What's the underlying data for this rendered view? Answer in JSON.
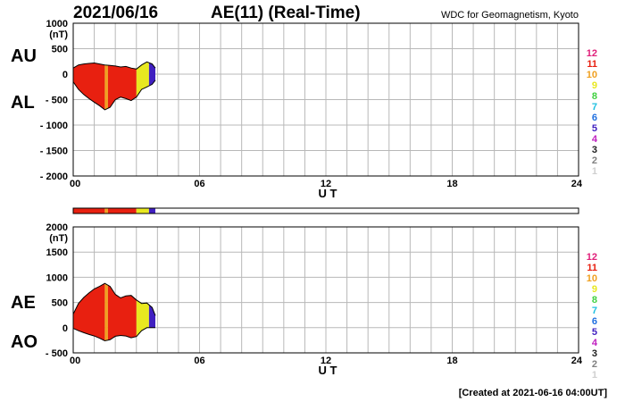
{
  "header": {
    "date": "2021/06/16",
    "title": "AE(11) (Real-Time)",
    "credit": "WDC for Geomagnetism, Kyoto"
  },
  "footer": {
    "created": "[Created at 2021-06-16 04:00UT]"
  },
  "colors": {
    "stations": {
      "12": "#e0207a",
      "11": "#e82010",
      "10": "#f0a020",
      "9": "#e8e820",
      "8": "#40d040",
      "7": "#20c0e0",
      "6": "#2070e0",
      "5": "#4020c0",
      "4": "#c020c0",
      "3": "#202020",
      "2": "#808080",
      "1": "#d0d0d0"
    }
  },
  "legend": [
    "12",
    "11",
    "10",
    "9",
    "8",
    "7",
    "6",
    "5",
    "4",
    "3",
    "2",
    "1"
  ],
  "chart_data": [
    {
      "type": "area",
      "panel": "top",
      "side_labels": [
        "AU",
        "AL"
      ],
      "ylabel_unit": "(nT)",
      "ylim": [
        -2000,
        1000
      ],
      "yticks": [
        "1000",
        "500",
        "0",
        "- 500",
        "- 1000",
        "- 1500",
        "- 2000"
      ],
      "xlim": [
        0,
        24
      ],
      "xticks": [
        "00",
        "06",
        "12",
        "18",
        "24"
      ],
      "xlabel": "U T",
      "grid": true,
      "x": [
        0,
        0.25,
        0.5,
        0.75,
        1.0,
        1.25,
        1.5,
        1.75,
        2.0,
        2.25,
        2.5,
        2.75,
        3.0,
        3.25,
        3.5,
        3.75,
        3.9
      ],
      "series": [
        {
          "name": "AU",
          "values": [
            120,
            180,
            200,
            210,
            220,
            200,
            180,
            170,
            160,
            140,
            150,
            120,
            100,
            180,
            240,
            200,
            120
          ]
        },
        {
          "name": "AL",
          "values": [
            -150,
            -300,
            -400,
            -480,
            -550,
            -620,
            -700,
            -650,
            -500,
            -450,
            -480,
            -520,
            -450,
            -300,
            -250,
            -200,
            -120
          ]
        }
      ],
      "color_segments": [
        {
          "from": 0,
          "to": 1.5,
          "station": "11"
        },
        {
          "from": 1.5,
          "to": 1.65,
          "station": "10"
        },
        {
          "from": 1.65,
          "to": 3.0,
          "station": "11"
        },
        {
          "from": 3.0,
          "to": 3.6,
          "station": "9"
        },
        {
          "from": 3.6,
          "to": 3.9,
          "station": "5"
        }
      ]
    },
    {
      "type": "area",
      "panel": "bottom",
      "side_labels": [
        "AE",
        "AO"
      ],
      "ylabel_unit": "(nT)",
      "ylim": [
        -500,
        2000
      ],
      "yticks": [
        "2000",
        "1500",
        "1000",
        "500",
        "0",
        "- 500"
      ],
      "xlim": [
        0,
        24
      ],
      "xticks": [
        "00",
        "06",
        "12",
        "18",
        "24"
      ],
      "xlabel": "U T",
      "grid": true,
      "x": [
        0,
        0.25,
        0.5,
        0.75,
        1.0,
        1.25,
        1.5,
        1.75,
        2.0,
        2.25,
        2.5,
        2.75,
        3.0,
        3.25,
        3.5,
        3.75,
        3.9
      ],
      "series": [
        {
          "name": "AE",
          "values": [
            270,
            480,
            600,
            690,
            770,
            820,
            880,
            820,
            660,
            590,
            630,
            640,
            550,
            480,
            490,
            400,
            240
          ]
        },
        {
          "name": "AO",
          "values": [
            -15,
            -60,
            -100,
            -135,
            -165,
            -210,
            -260,
            -240,
            -170,
            -155,
            -165,
            -200,
            -175,
            -60,
            0,
            0,
            0
          ]
        }
      ],
      "color_segments": [
        {
          "from": 0,
          "to": 1.5,
          "station": "11"
        },
        {
          "from": 1.5,
          "to": 1.65,
          "station": "10"
        },
        {
          "from": 1.65,
          "to": 3.0,
          "station": "11"
        },
        {
          "from": 3.0,
          "to": 3.6,
          "station": "9"
        },
        {
          "from": 3.6,
          "to": 3.9,
          "station": "5"
        }
      ]
    }
  ]
}
